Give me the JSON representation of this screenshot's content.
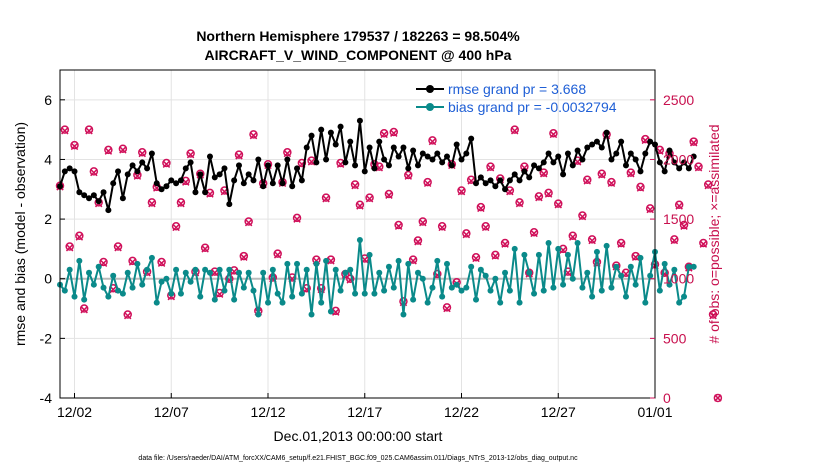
{
  "chart_data": {
    "type": "line",
    "title": "Northern Hemisphere 179537 / 182263 = 98.504%",
    "subtitle": "AIRCRAFT_V_WIND_COMPONENT @ 400 hPa",
    "xlabel": "Dec.01,2013 00:00:00 start",
    "ylabel": "rmse and bias (model - observation)",
    "ylabel_right": "# of obs: o=possible; ×=assimilated",
    "footer": "data file: /Users/raeder/DAI/ATM_forcXX/CAM6_setup/f.e21.FHIST_BGC.f09_025.CAM6assim.011/Diags_NTrS_2013-12/obs_diag_output.nc",
    "x_ticks": [
      "12/02",
      "12/07",
      "12/12",
      "12/17",
      "12/22",
      "12/27",
      "01/01"
    ],
    "x_tick_days": [
      1,
      6,
      11,
      16,
      21,
      26,
      31
    ],
    "xlim": [
      0.25,
      31.0
    ],
    "y_ticks": [
      "6",
      "4",
      "2",
      "0",
      "-2",
      "-4"
    ],
    "y_tick_values": [
      6,
      4,
      2,
      0,
      -2,
      -4
    ],
    "ylim": [
      -4,
      7
    ],
    "y2_ticks": [
      "2500",
      "2000",
      "1500",
      "1000",
      "500",
      "0"
    ],
    "y2_tick_values": [
      2500,
      2000,
      1500,
      1000,
      500,
      0
    ],
    "y2lim": [
      0,
      2750
    ],
    "legend": {
      "rmse": "rmse grand pr = 3.668",
      "bias": "bias grand pr = -0.0032794",
      "position": "top-right"
    },
    "colors": {
      "rmse": "#000000",
      "bias": "#0a8a8a",
      "obs": "#d0105a",
      "legend_text": "#1f5fd6",
      "zero_line": "#bbbbbb"
    },
    "series": [
      {
        "name": "rmse",
        "values": [
          3.1,
          3.6,
          3.7,
          3.6,
          2.9,
          2.8,
          2.7,
          2.8,
          2.6,
          2.9,
          2.3,
          3.2,
          3.6,
          2.7,
          3.5,
          3.8,
          3.6,
          3.9,
          3.7,
          4.2,
          3.2,
          3.0,
          3.1,
          3.3,
          3.2,
          3.3,
          3.7,
          3.9,
          2.9,
          3.5,
          2.9,
          4.1,
          3.4,
          3.5,
          3.7,
          2.5,
          3.3,
          3.8,
          3.2,
          3.5,
          3.3,
          4.0,
          3.1,
          3.8,
          3.2,
          3.8,
          3.2,
          4.0,
          3.1,
          3.7,
          3.3,
          4.4,
          4.8,
          3.9,
          5.0,
          4.0,
          4.9,
          4.5,
          5.1,
          3.9,
          4.6,
          3.8,
          5.3,
          3.6,
          4.4,
          3.7,
          4.6,
          4.0,
          3.8,
          4.4,
          4.1,
          4.4,
          3.7,
          4.3,
          3.8,
          4.2,
          4.1,
          4.0,
          4.2,
          3.9,
          4.1,
          3.8,
          4.5,
          4.0,
          4.2,
          4.7,
          3.2,
          3.4,
          3.2,
          3.3,
          3.1,
          3.3,
          3.0,
          3.3,
          3.5,
          3.3,
          3.6,
          3.4,
          3.8,
          3.7,
          3.9,
          4.2,
          3.9,
          4.1,
          3.5,
          4.2,
          3.8,
          4.3,
          4.0,
          4.4,
          4.5,
          4.6,
          4.4,
          4.9,
          4.0,
          4.2,
          4.6,
          3.8,
          4.2,
          4.0,
          3.6,
          4.2,
          4.6,
          4.5,
          3.9,
          3.6,
          4.3,
          3.9,
          3.7,
          3.9,
          3.7,
          4.1
        ]
      },
      {
        "name": "bias",
        "values": [
          -0.2,
          -0.4,
          0.3,
          -0.6,
          0.6,
          -0.7,
          0.2,
          -0.2,
          0.4,
          -0.3,
          -0.6,
          0.1,
          -0.4,
          -0.5,
          0.2,
          -0.3,
          0.5,
          -0.2,
          0.3,
          0.7,
          -0.8,
          -0.1,
          0.0,
          -0.5,
          0.3,
          -0.5,
          0.2,
          -0.1,
          0.3,
          -0.6,
          0.3,
          0.2,
          -0.7,
          0.3,
          -0.4,
          0.3,
          -0.7,
          0.2,
          -0.3,
          0.2,
          -0.4,
          -1.2,
          0.2,
          -0.8,
          0.3,
          -0.5,
          -0.8,
          0.5,
          -0.6,
          0.5,
          -0.5,
          0.3,
          -1.2,
          0.5,
          -0.8,
          0.6,
          -1.1,
          0.3,
          -0.4,
          0.2,
          0.3,
          -0.5,
          1.3,
          -0.5,
          0.8,
          -0.5,
          0.2,
          -0.4,
          0.4,
          -0.3,
          0.6,
          -1.2,
          0.5,
          -0.7,
          0.2,
          0.0,
          -0.8,
          -0.3,
          0.6,
          -0.6,
          0.5,
          -0.3,
          -0.2,
          -0.4,
          -0.3,
          0.4,
          -0.7,
          0.3,
          0.1,
          -0.4,
          0.0,
          -0.8,
          0.2,
          -0.4,
          1.0,
          -0.8,
          0.8,
          0.2,
          -0.5,
          0.8,
          -0.4,
          1.2,
          -0.3,
          1.0,
          -0.2,
          0.8,
          0.0,
          1.2,
          -0.3,
          0.2,
          -0.6,
          0.9,
          -0.4,
          1.1,
          -0.3,
          0.4,
          0.1,
          -0.6,
          0.4,
          -0.2,
          0.7,
          -0.8,
          0.1,
          0.9,
          -0.4,
          0.5,
          -0.2,
          0.3,
          -0.8,
          -0.6,
          0.4,
          0.4
        ]
      },
      {
        "name": "obs_possible",
        "values": [
          1780,
          2250,
          1270,
          2120,
          1360,
          750,
          2250,
          1900,
          1640,
          1140,
          2080,
          920,
          1270,
          2090,
          700,
          1150,
          1870,
          2060,
          1060,
          1640,
          1770,
          1140,
          1970,
          860,
          1440,
          1640,
          1820,
          2050,
          1060,
          1880,
          1260,
          1720,
          1060,
          880,
          1740,
          1000,
          1070,
          2040,
          1190,
          1480,
          2210,
          730,
          1800,
          1960,
          1010,
          1210,
          1810,
          2060,
          1010,
          1510,
          1970,
          920,
          1990,
          1160,
          920,
          1680,
          1160,
          730,
          1970,
          1040,
          1000,
          1790,
          1620,
          1170,
          1680,
          1960,
          1940,
          2220,
          1710,
          2230,
          1450,
          810,
          1870,
          1160,
          1320,
          1480,
          1810,
          2160,
          1040,
          1440,
          760,
          1960,
          970,
          1740,
          1380,
          1830,
          1180,
          1600,
          1440,
          1940,
          1200,
          1840,
          1300,
          1740,
          2250,
          1640,
          1940,
          1050,
          1390,
          1690,
          1890,
          1720,
          2220,
          1630,
          1250,
          1060,
          1360,
          1990,
          1530,
          1830,
          1330,
          1140,
          1880,
          2210,
          1810,
          1110,
          1300,
          1050,
          1890,
          1190,
          1770,
          2170,
          1590,
          1120,
          2080,
          1050,
          2050,
          1330,
          1620,
          1450,
          1100,
          2150,
          1940,
          1300,
          1790,
          700,
          0
        ]
      },
      {
        "name": "obs_assimilated",
        "values": [
          1770,
          2240,
          1260,
          2110,
          1350,
          740,
          2240,
          1890,
          1630,
          1130,
          2070,
          910,
          1260,
          2080,
          690,
          1140,
          1860,
          2050,
          1050,
          1630,
          1760,
          1130,
          1960,
          850,
          1430,
          1630,
          1810,
          2040,
          1050,
          1870,
          1250,
          1710,
          1050,
          870,
          1730,
          990,
          1060,
          2030,
          1180,
          1470,
          2200,
          720,
          1790,
          1950,
          1000,
          1200,
          1800,
          2050,
          1000,
          1500,
          1960,
          910,
          1980,
          1150,
          910,
          1670,
          1150,
          720,
          1960,
          1030,
          990,
          1780,
          1610,
          1160,
          1670,
          1950,
          1930,
          2210,
          1700,
          2220,
          1440,
          800,
          1860,
          1150,
          1310,
          1470,
          1800,
          2150,
          1030,
          1430,
          750,
          1950,
          960,
          1730,
          1370,
          1820,
          1170,
          1590,
          1430,
          1930,
          1190,
          1830,
          1290,
          1730,
          2240,
          1630,
          1930,
          1040,
          1380,
          1680,
          1880,
          1710,
          2210,
          1620,
          1240,
          1050,
          1350,
          1980,
          1520,
          1820,
          1320,
          1130,
          1870,
          2200,
          1800,
          1100,
          1290,
          1040,
          1880,
          1180,
          1760,
          2160,
          1580,
          1110,
          2070,
          1040,
          2040,
          1320,
          1610,
          1440,
          1090,
          2140,
          1930,
          1290,
          1780,
          690,
          0
        ]
      }
    ]
  }
}
